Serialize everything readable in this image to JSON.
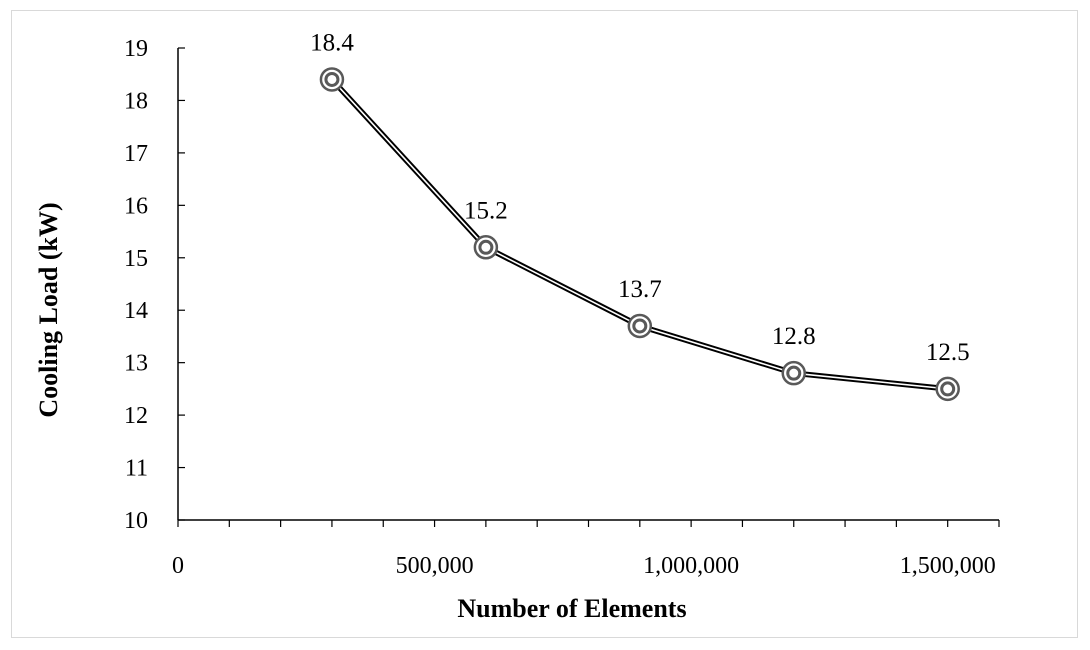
{
  "chart_data": {
    "type": "line",
    "title": "",
    "xlabel": "Number of Elements",
    "ylabel": "Cooling Load (kW)",
    "xlim": [
      0,
      1600000
    ],
    "ylim": [
      10,
      19
    ],
    "x_ticks": [
      0,
      500000,
      1000000,
      1500000
    ],
    "x_tick_labels": [
      "0",
      "500,000",
      "1,000,000",
      "1,500,000"
    ],
    "x_minor_step": 100000,
    "y_ticks": [
      10,
      11,
      12,
      13,
      14,
      15,
      16,
      17,
      18,
      19
    ],
    "y_tick_labels": [
      "10",
      "11",
      "12",
      "13",
      "14",
      "15",
      "16",
      "17",
      "18",
      "19"
    ],
    "grid": false,
    "legend": "none",
    "series": [
      {
        "x": [
          300000,
          600000,
          900000,
          1200000,
          1500000
        ],
        "y": [
          18.4,
          15.2,
          13.7,
          12.8,
          12.5
        ],
        "labels": [
          "18.4",
          "15.2",
          "13.7",
          "12.8",
          "12.5"
        ],
        "color": "#000000",
        "marker_color": "#595959",
        "line_style": "double"
      }
    ]
  }
}
